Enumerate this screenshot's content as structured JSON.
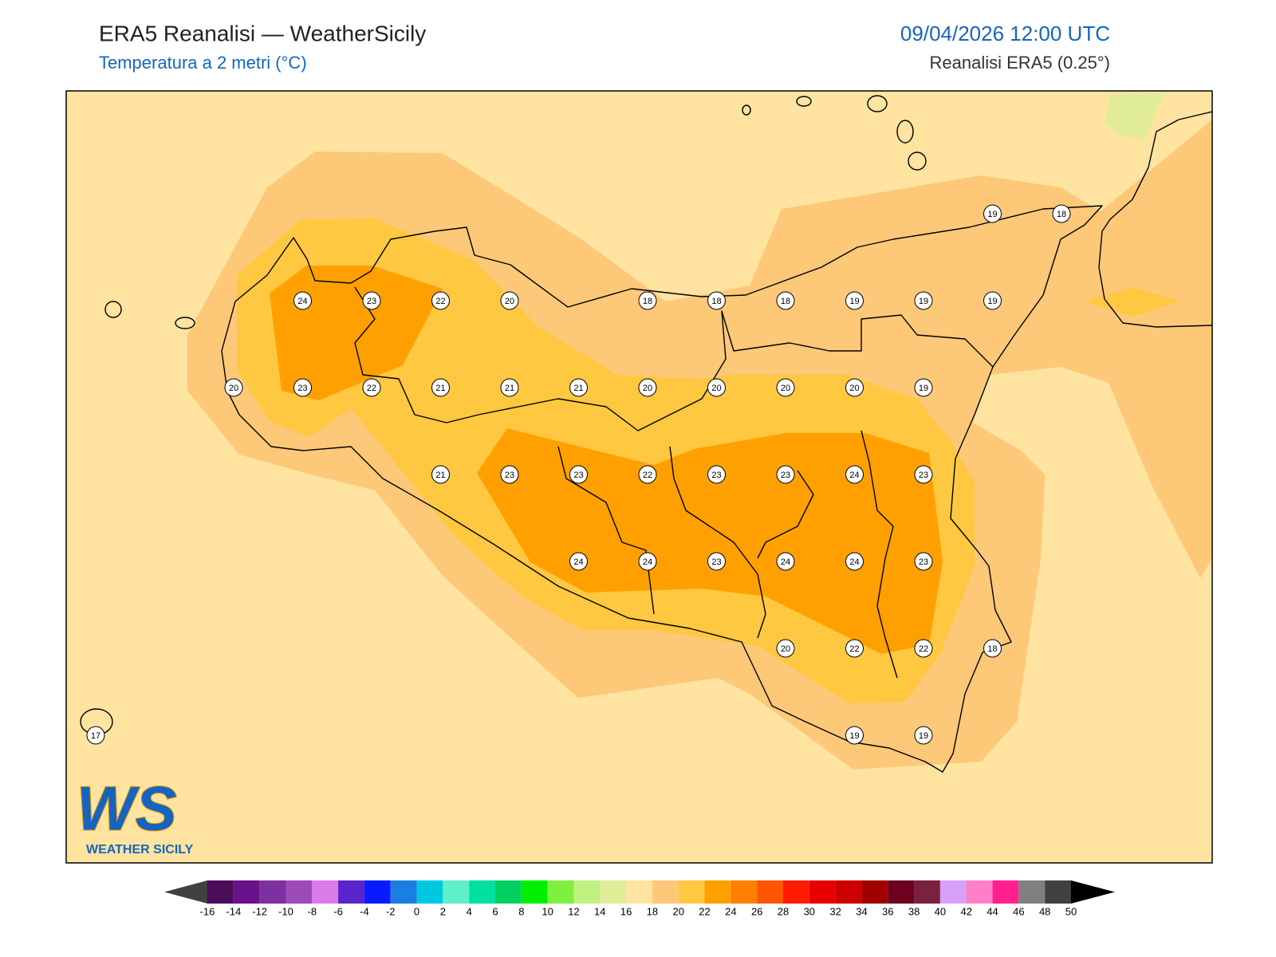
{
  "header": {
    "title": "ERA5 Reanalisi — WeatherSicily",
    "subtitle": "Temperatura a 2 metri (°C)",
    "datetime": "09/04/2026 12:00 UTC",
    "source": "Reanalisi ERA5 (0.25°)"
  },
  "stations": {
    "rows": [
      [
        null,
        null,
        null,
        null,
        null,
        null,
        null,
        null,
        null,
        null,
        null,
        null,
        null,
        19,
        18
      ],
      [
        null,
        null,
        null,
        24,
        23,
        22,
        20,
        null,
        18,
        18,
        18,
        19,
        19,
        19,
        null
      ],
      [
        null,
        null,
        20,
        23,
        22,
        21,
        21,
        21,
        20,
        20,
        20,
        20,
        19,
        null,
        null
      ],
      [
        null,
        null,
        null,
        null,
        null,
        21,
        23,
        23,
        22,
        23,
        23,
        24,
        23,
        null,
        null
      ],
      [
        null,
        null,
        null,
        null,
        null,
        null,
        null,
        24,
        24,
        23,
        24,
        24,
        23,
        null,
        null
      ],
      [
        null,
        null,
        null,
        null,
        null,
        null,
        null,
        null,
        null,
        null,
        20,
        22,
        22,
        18,
        null
      ],
      [
        17,
        null,
        null,
        null,
        null,
        null,
        null,
        null,
        null,
        null,
        null,
        19,
        19,
        null,
        null
      ]
    ]
  },
  "colorbar": {
    "ticks": [
      -16,
      -14,
      -12,
      -10,
      -8,
      -6,
      -4,
      -2,
      0,
      2,
      4,
      6,
      8,
      10,
      12,
      14,
      16,
      18,
      20,
      22,
      24,
      26,
      28,
      30,
      32,
      34,
      36,
      38,
      40,
      42,
      44,
      46,
      48,
      50
    ],
    "colors": [
      "#4b0c59",
      "#6a1289",
      "#7e2fa0",
      "#9b4ab8",
      "#d97ae8",
      "#5a25c8",
      "#0a1cff",
      "#1a7fe0",
      "#00c8e0",
      "#5ef0c8",
      "#00e0a0",
      "#00d060",
      "#00f000",
      "#80f040",
      "#c0f080",
      "#e0ec98",
      "#fee4a0",
      "#fdc878",
      "#ffc840",
      "#ffa000",
      "#ff7f00",
      "#ff5500",
      "#ff1a00",
      "#e60000",
      "#cc0000",
      "#a00000",
      "#6e0020",
      "#7a2040",
      "#d8a0f8",
      "#ff80c8",
      "#ff2090",
      "#808080",
      "#404040"
    ],
    "under_color": "#404040",
    "over_color": "#000000"
  },
  "logo": {
    "mark": "WS",
    "text": "WEATHER SICILY"
  }
}
